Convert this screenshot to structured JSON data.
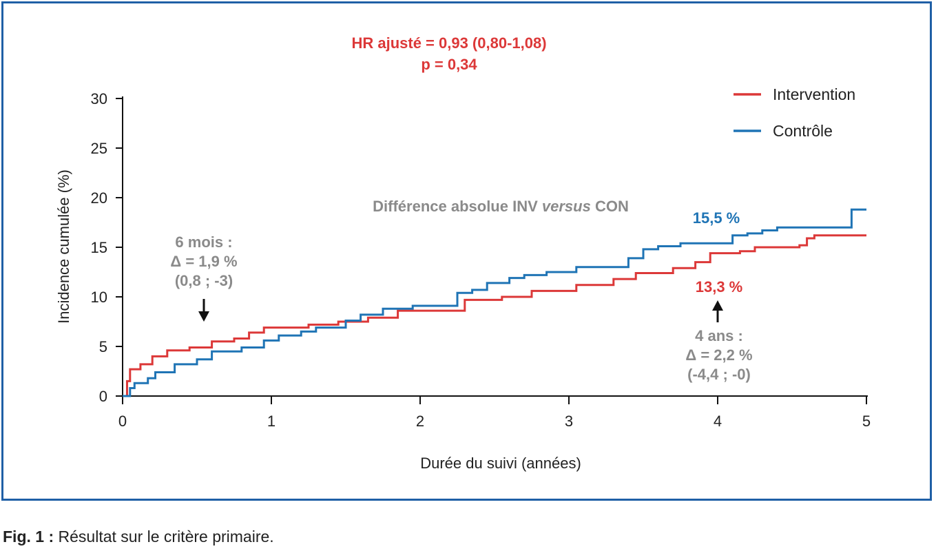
{
  "chart_data": {
    "type": "line",
    "xlabel": "Durée du suivi (années)",
    "ylabel": "Incidence cumulée (%)",
    "xlim": [
      0,
      5
    ],
    "ylim": [
      0,
      30
    ],
    "x_ticks": [
      0,
      1,
      2,
      3,
      4,
      5
    ],
    "y_ticks": [
      0,
      5,
      10,
      15,
      20,
      25,
      30
    ],
    "grid": false,
    "legend_position": "top-right",
    "stat_annotation": {
      "line1": "HR ajusté = 0,93 (0,80-1,08)",
      "line2": "p = 0,34"
    },
    "difference_title": {
      "before": "Différence absolue INV ",
      "italic": "versus",
      "after": " CON"
    },
    "annotations": {
      "six_months": {
        "line1": "6 mois :",
        "line2": "Δ = 1,9 %",
        "line3": "(0,8 ; -3)",
        "x": 0.54
      },
      "four_years": {
        "line1": "4 ans :",
        "line2": "Δ = 2,2 %",
        "line3": "(-4,4 ; -0)",
        "x": 4.0
      },
      "control_value": "15,5 %",
      "intervention_value": "13,3 %"
    },
    "series": [
      {
        "name": "Intervention",
        "color": "#dc3838",
        "x": [
          0,
          0.03,
          0.05,
          0.12,
          0.2,
          0.3,
          0.45,
          0.6,
          0.75,
          0.85,
          0.95,
          1.25,
          1.45,
          1.65,
          1.85,
          2.3,
          2.55,
          2.75,
          3.05,
          3.3,
          3.45,
          3.7,
          3.85,
          3.95,
          4.15,
          4.25,
          4.55,
          4.6,
          4.65,
          5.0
        ],
        "y": [
          0,
          1.5,
          2.7,
          3.2,
          4.0,
          4.6,
          4.9,
          5.5,
          5.8,
          6.4,
          6.9,
          7.2,
          7.5,
          7.9,
          8.6,
          9.7,
          10.0,
          10.6,
          11.2,
          11.8,
          12.4,
          12.9,
          13.5,
          14.4,
          14.6,
          15.0,
          15.2,
          15.9,
          16.2,
          16.2
        ],
        "end_label": "13,3 %"
      },
      {
        "name": "Contrôle",
        "color": "#1f74b5",
        "x": [
          0,
          0.05,
          0.08,
          0.17,
          0.22,
          0.35,
          0.5,
          0.6,
          0.8,
          0.95,
          1.05,
          1.2,
          1.3,
          1.5,
          1.6,
          1.75,
          1.95,
          2.25,
          2.35,
          2.45,
          2.6,
          2.7,
          2.85,
          3.05,
          3.4,
          3.5,
          3.6,
          3.75,
          4.1,
          4.2,
          4.3,
          4.4,
          4.9,
          5.0
        ],
        "y": [
          0,
          0.8,
          1.3,
          1.8,
          2.4,
          3.2,
          3.7,
          4.5,
          4.9,
          5.6,
          6.1,
          6.5,
          6.9,
          7.6,
          8.2,
          8.8,
          9.1,
          10.4,
          10.7,
          11.4,
          11.9,
          12.2,
          12.5,
          13.0,
          13.9,
          14.8,
          15.1,
          15.4,
          16.2,
          16.4,
          16.7,
          17.0,
          18.8,
          18.8
        ],
        "end_label": "15,5 %"
      }
    ]
  },
  "caption": {
    "label": "Fig. 1 :",
    "text": " Résultat sur le critère primaire."
  }
}
